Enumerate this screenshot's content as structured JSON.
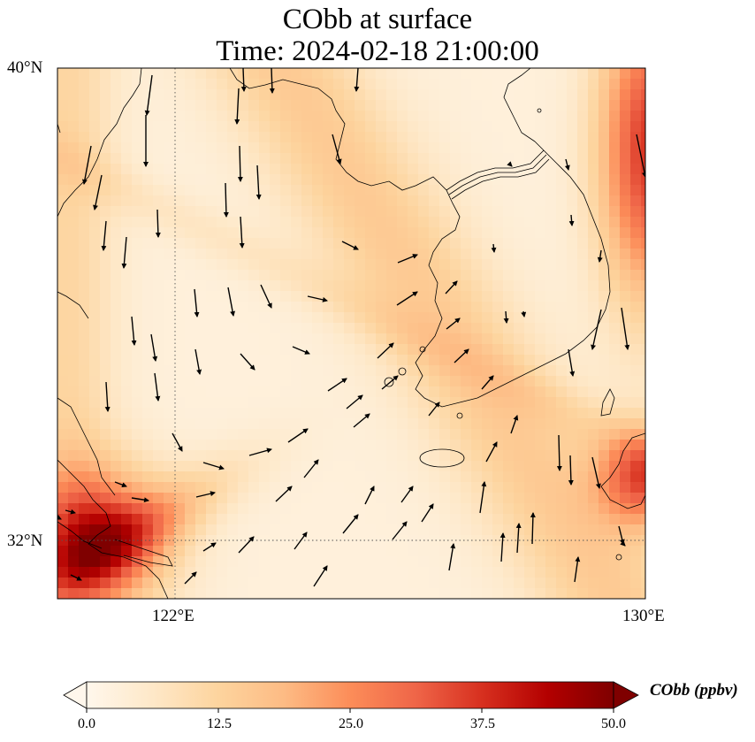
{
  "title": {
    "line1": "CObb at surface",
    "line2": "Time: 2024-02-18 21:00:00"
  },
  "map": {
    "lon_range": [
      119,
      130
    ],
    "lat_range": [
      31,
      40
    ],
    "gridlines": {
      "lon": [
        122
      ],
      "lat": [
        32
      ],
      "style": "dotted"
    },
    "xticks": [
      "122°E",
      "130°E"
    ],
    "yticks": [
      "40°N",
      "32°N"
    ],
    "variable": "CObb",
    "colormap": "OrRd"
  },
  "colorbar": {
    "label": "CObb (ppbv)",
    "min": 0.0,
    "max": 50.0,
    "extend": "both",
    "ticks": [
      "0.0",
      "12.5",
      "25.0",
      "37.5",
      "50.0"
    ],
    "colors": [
      "#fff7ec",
      "#fee8c8",
      "#fdd49e",
      "#fdbb84",
      "#fc8d59",
      "#ef6548",
      "#d7301f",
      "#b30000",
      "#7f0000"
    ]
  }
}
